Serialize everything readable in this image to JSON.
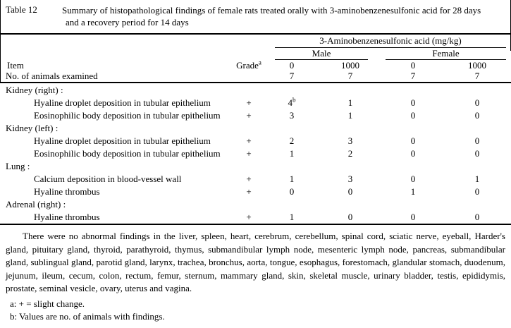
{
  "title": {
    "table_label": "Table 12",
    "line1": "Summary of histopathological findings of female rats treated orally with 3-aminobenzenesulfonic acid for 28 days",
    "line2": "and a recovery period for 14 days"
  },
  "table": {
    "group_header": "3-Aminobenzenesulfonic acid (mg/kg)",
    "sex_groups": [
      "Male",
      "Female"
    ],
    "item_header": "Item",
    "grade_header": "Grade",
    "grade_header_sup": "a",
    "dose_columns": [
      "0",
      "1000",
      "0",
      "1000"
    ],
    "animals_row": {
      "item": "No. of animals examined",
      "values": [
        "7",
        "7",
        "7",
        "7"
      ]
    },
    "rows": [
      {
        "type": "section",
        "item": "Kidney (right) :"
      },
      {
        "type": "finding",
        "item": "Hyaline droplet deposition in tubular epithelium",
        "grade": "+",
        "values": [
          "4",
          "1",
          "0",
          "0"
        ],
        "sups": [
          "b",
          "",
          "",
          ""
        ]
      },
      {
        "type": "finding",
        "item": "Eosinophilic body deposition in tubular epithelium",
        "grade": "+",
        "values": [
          "3",
          "1",
          "0",
          "0"
        ]
      },
      {
        "type": "section",
        "item": "Kidney (left) :"
      },
      {
        "type": "finding",
        "item": "Hyaline droplet deposition in tubular epithelium",
        "grade": "+",
        "values": [
          "2",
          "3",
          "0",
          "0"
        ]
      },
      {
        "type": "finding",
        "item": "Eosinophilic body deposition in tubular epithelium",
        "grade": "+",
        "values": [
          "1",
          "2",
          "0",
          "0"
        ]
      },
      {
        "type": "section",
        "item": "Lung :"
      },
      {
        "type": "finding",
        "item": "Calcium deposition in blood-vessel wall",
        "grade": "+",
        "values": [
          "1",
          "3",
          "0",
          "1"
        ]
      },
      {
        "type": "finding",
        "item": "Hyaline thrombus",
        "grade": "+",
        "values": [
          "0",
          "0",
          "1",
          "0"
        ]
      },
      {
        "type": "section",
        "item": "Adrenal (right) :"
      },
      {
        "type": "finding",
        "item": "Hyaline thrombus",
        "grade": "+",
        "values": [
          "1",
          "0",
          "0",
          "0"
        ]
      }
    ]
  },
  "notes": {
    "paragraph": "There were no abnormal findings in the liver, spleen, heart, cerebrum, cerebellum, spinal cord, sciatic nerve, eyeball, Harder's gland, pituitary gland, thyroid, parathyroid, thymus, submandibular lymph node, mesenteric lymph node, pancreas, submandibular gland, sublingual gland, parotid gland, larynx, trachea, bronchus, aorta, tongue, esophagus, forestomach, glandular stomach, duodenum, jejunum, ileum, cecum, colon, rectum, femur, sternum, mammary gland, skin, skeletal muscle, urinary bladder, testis, epididymis, prostate, seminal vesicle, ovary, uterus and vagina.",
    "footnote_a": "a: + = slight change.",
    "footnote_b": "b: Values are no. of animals with findings."
  }
}
